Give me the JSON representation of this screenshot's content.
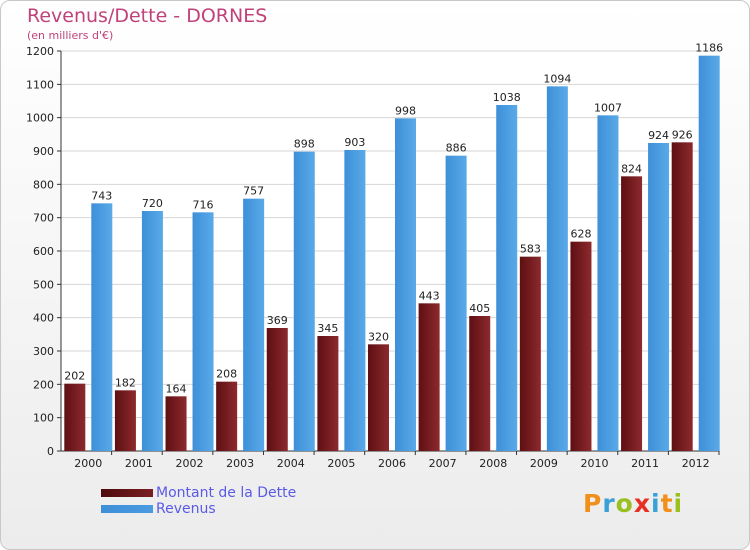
{
  "header": {
    "title": "Revenus/Dette - DORNES",
    "subtitle": "(en milliers d'€)"
  },
  "colors": {
    "title": "#c0427a",
    "debt": "#7a1e22",
    "revenue": "#4a9be0",
    "legend_text": "#5a5ae6"
  },
  "logo": {
    "text": "Proxiti",
    "colors": [
      "#f0901a",
      "#3aa0d8",
      "#9ac020",
      "#e83020",
      "#3aa0d8",
      "#f0901a",
      "#9ac020"
    ]
  },
  "chart_data": {
    "type": "bar",
    "categories": [
      "2000",
      "2001",
      "2002",
      "2003",
      "2004",
      "2005",
      "2006",
      "2007",
      "2008",
      "2009",
      "2010",
      "2011",
      "2012"
    ],
    "series": [
      {
        "name": "Montant de la Dette",
        "values": [
          202,
          182,
          164,
          208,
          369,
          345,
          320,
          443,
          405,
          583,
          628,
          824,
          926
        ]
      },
      {
        "name": "Revenus",
        "values": [
          743,
          720,
          716,
          757,
          898,
          903,
          998,
          886,
          1038,
          1094,
          1007,
          924,
          1186
        ]
      }
    ],
    "ylim": [
      0,
      1200
    ],
    "yticks": [
      0,
      100,
      200,
      300,
      400,
      500,
      600,
      700,
      800,
      900,
      1000,
      1100,
      1200
    ],
    "grid": true,
    "legend_position": "bottom-left"
  }
}
